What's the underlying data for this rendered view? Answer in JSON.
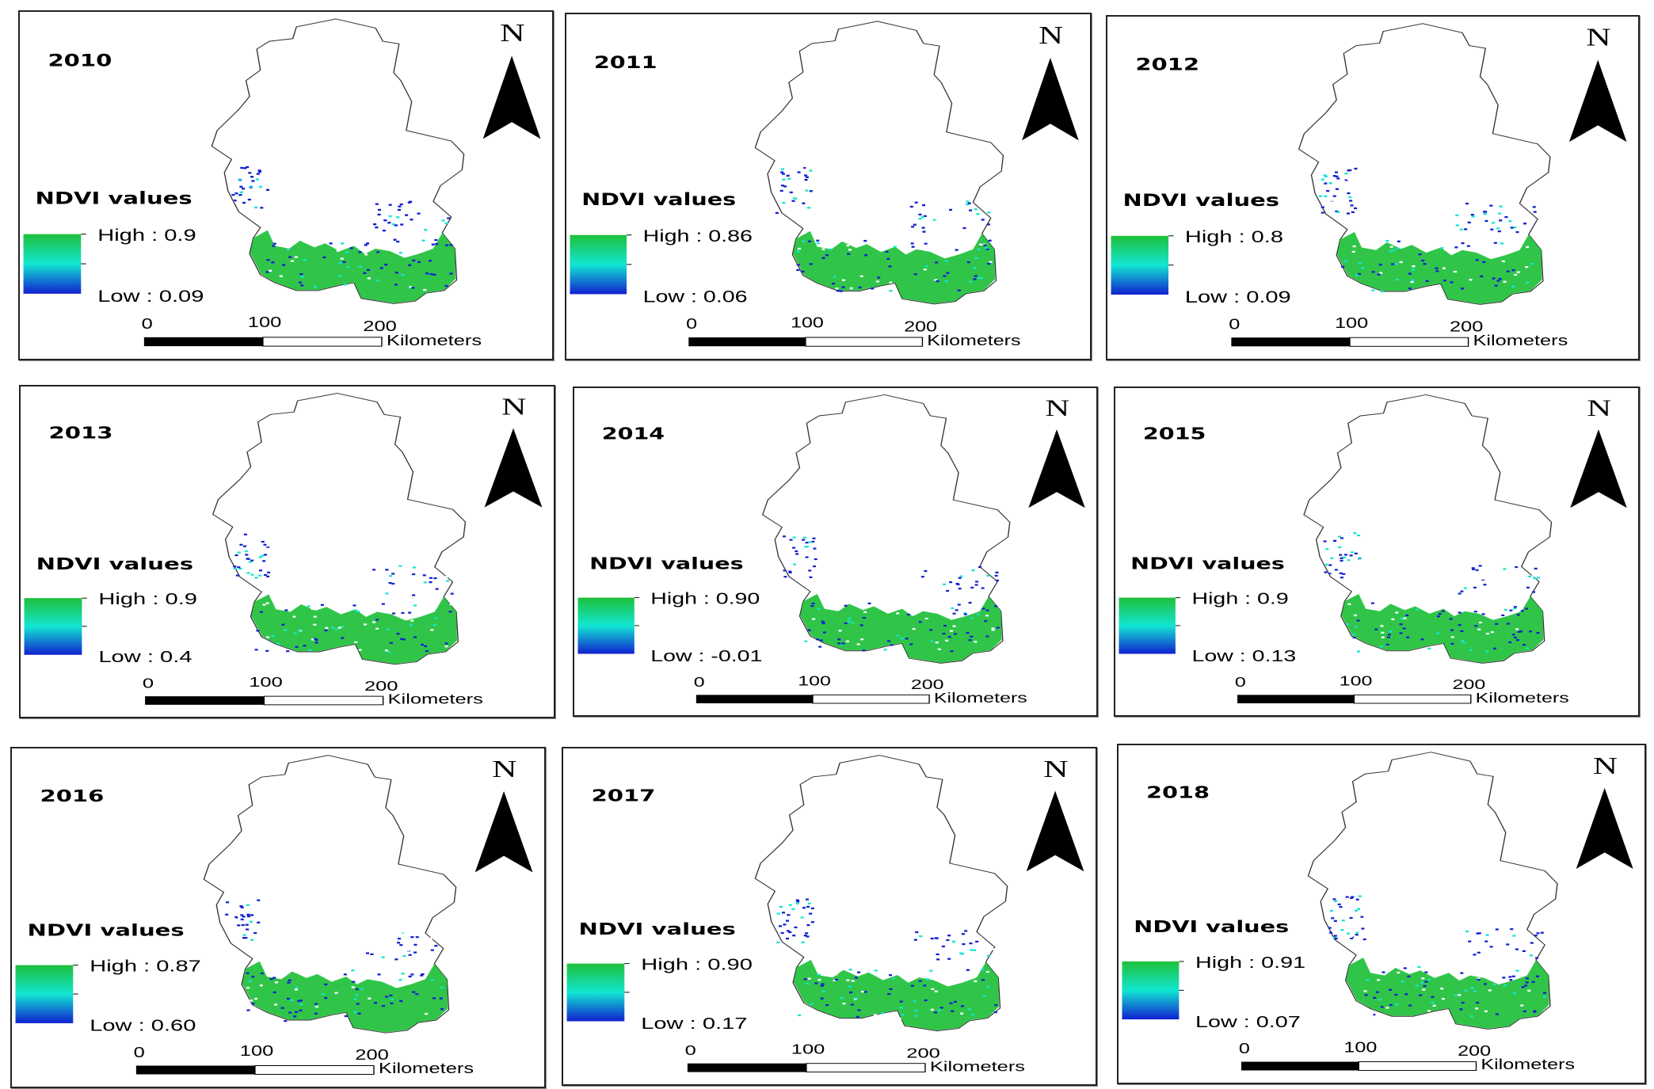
{
  "legend_title": "NDVI values",
  "north_label": "N",
  "scale": {
    "ticks": [
      "0",
      "100",
      "200"
    ],
    "unit": "Kilometers"
  },
  "colors": {
    "high": "#1ec03a",
    "mid": "#12e6d2",
    "low": "#1020d0",
    "outline": "#333333"
  },
  "panels": [
    {
      "year": "2010",
      "high": "High : 0.9",
      "low": "Low : 0.09"
    },
    {
      "year": "2011",
      "high": "High : 0.86",
      "low": "Low : 0.06"
    },
    {
      "year": "2012",
      "high": "High : 0.8",
      "low": "Low : 0.09"
    },
    {
      "year": "2013",
      "high": "High : 0.9",
      "low": "Low : 0.4"
    },
    {
      "year": "2014",
      "high": "High : 0.90",
      "low": "Low : -0.01"
    },
    {
      "year": "2015",
      "high": "High : 0.9",
      "low": "Low : 0.13"
    },
    {
      "year": "2016",
      "high": "High : 0.87",
      "low": "Low : 0.60"
    },
    {
      "year": "2017",
      "high": "High : 0.90",
      "low": "Low : 0.17"
    },
    {
      "year": "2018",
      "high": "High : 0.91",
      "low": "Low : 0.07"
    }
  ]
}
